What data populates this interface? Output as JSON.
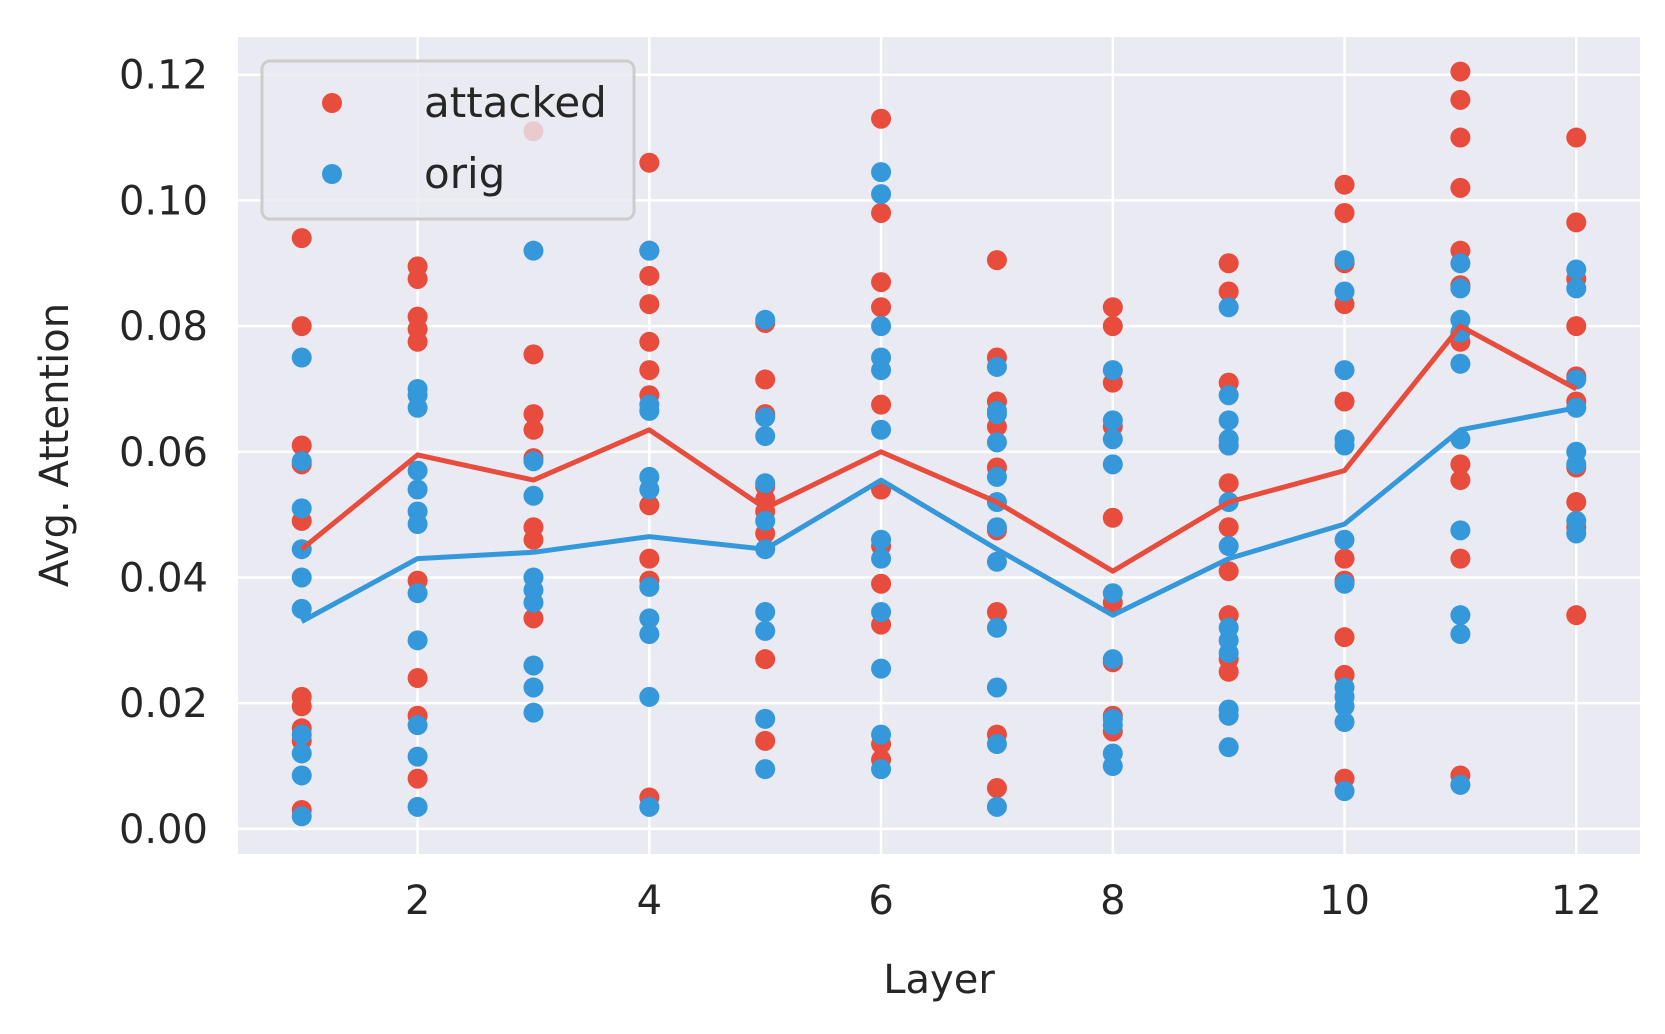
{
  "chart_data": {
    "type": "scatter",
    "title": "",
    "xlabel": "Layer",
    "ylabel": "Avg. Attention",
    "xlim": [
      0.45,
      12.55
    ],
    "ylim": [
      -0.004,
      0.126
    ],
    "xticks": [
      2,
      4,
      6,
      8,
      10,
      12
    ],
    "xtick_labels": [
      "2",
      "4",
      "6",
      "8",
      "10",
      "12"
    ],
    "yticks": [
      0.0,
      0.02,
      0.04,
      0.06,
      0.08,
      0.1,
      0.12
    ],
    "ytick_labels": [
      "0.00",
      "0.02",
      "0.04",
      "0.06",
      "0.08",
      "0.10",
      "0.12"
    ],
    "grid": true,
    "legend_position": "top-left",
    "colors": {
      "background": "#eaeaf2",
      "grid": "#ffffff",
      "attacked": "#e74c3c",
      "orig": "#3498db"
    },
    "series": [
      {
        "name": "attacked",
        "color": "#e74c3c",
        "points": {
          "1": [
            0.094,
            0.08,
            0.061,
            0.058,
            0.049,
            0.021,
            0.0195,
            0.016,
            0.014,
            0.003
          ],
          "2": [
            0.0895,
            0.0875,
            0.0815,
            0.0795,
            0.0775,
            0.0395,
            0.024,
            0.018,
            0.008
          ],
          "3": [
            0.111,
            0.0755,
            0.066,
            0.0635,
            0.059,
            0.048,
            0.046,
            0.0335
          ],
          "4": [
            0.106,
            0.092,
            0.088,
            0.0835,
            0.0775,
            0.073,
            0.069,
            0.0515,
            0.043,
            0.0395,
            0.005
          ],
          "5": [
            0.0805,
            0.0715,
            0.066,
            0.0545,
            0.0525,
            0.0505,
            0.047,
            0.027,
            0.014
          ],
          "6": [
            0.113,
            0.098,
            0.087,
            0.083,
            0.0675,
            0.054,
            0.045,
            0.039,
            0.0325,
            0.0135,
            0.011
          ],
          "7": [
            0.0905,
            0.075,
            0.068,
            0.064,
            0.0575,
            0.0475,
            0.0345,
            0.015,
            0.0065
          ],
          "8": [
            0.083,
            0.08,
            0.071,
            0.064,
            0.0495,
            0.036,
            0.0265,
            0.018,
            0.0155
          ],
          "9": [
            0.09,
            0.0855,
            0.071,
            0.061,
            0.055,
            0.048,
            0.041,
            0.034,
            0.027,
            0.025
          ],
          "10": [
            0.1025,
            0.098,
            0.09,
            0.0835,
            0.068,
            0.043,
            0.0395,
            0.0305,
            0.0245,
            0.008
          ],
          "11": [
            0.1205,
            0.116,
            0.11,
            0.102,
            0.092,
            0.0865,
            0.0775,
            0.058,
            0.0555,
            0.043,
            0.0085
          ],
          "12": [
            0.11,
            0.0965,
            0.0875,
            0.08,
            0.072,
            0.068,
            0.0575,
            0.052,
            0.048,
            0.034
          ]
        },
        "line": [
          0.0445,
          0.0595,
          0.0555,
          0.0635,
          0.051,
          0.06,
          0.052,
          0.041,
          0.052,
          0.057,
          0.08,
          0.07
        ]
      },
      {
        "name": "orig",
        "color": "#3498db",
        "points": {
          "1": [
            0.075,
            0.0585,
            0.051,
            0.0445,
            0.04,
            0.035,
            0.015,
            0.012,
            0.0085,
            0.002
          ],
          "2": [
            0.07,
            0.069,
            0.067,
            0.057,
            0.054,
            0.0505,
            0.0485,
            0.0375,
            0.03,
            0.0165,
            0.0115,
            0.0035
          ],
          "3": [
            0.092,
            0.0585,
            0.053,
            0.04,
            0.038,
            0.036,
            0.026,
            0.0225,
            0.0185
          ],
          "4": [
            0.092,
            0.0675,
            0.0665,
            0.056,
            0.054,
            0.0385,
            0.0335,
            0.031,
            0.021,
            0.0035
          ],
          "5": [
            0.081,
            0.0655,
            0.0625,
            0.055,
            0.049,
            0.0445,
            0.0345,
            0.0315,
            0.0175,
            0.0095
          ],
          "6": [
            0.1045,
            0.101,
            0.08,
            0.075,
            0.073,
            0.0635,
            0.046,
            0.043,
            0.0345,
            0.0255,
            0.015,
            0.0095
          ],
          "7": [
            0.0735,
            0.0665,
            0.066,
            0.0615,
            0.056,
            0.052,
            0.048,
            0.0425,
            0.032,
            0.0225,
            0.0135,
            0.0035
          ],
          "8": [
            0.073,
            0.065,
            0.062,
            0.058,
            0.0375,
            0.027,
            0.0175,
            0.0165,
            0.012,
            0.01
          ],
          "9": [
            0.083,
            0.069,
            0.065,
            0.062,
            0.061,
            0.052,
            0.045,
            0.032,
            0.03,
            0.028,
            0.019,
            0.018,
            0.013
          ],
          "10": [
            0.0905,
            0.0855,
            0.073,
            0.062,
            0.061,
            0.046,
            0.039,
            0.0225,
            0.021,
            0.0195,
            0.017,
            0.006
          ],
          "11": [
            0.09,
            0.086,
            0.081,
            0.079,
            0.074,
            0.062,
            0.0475,
            0.034,
            0.031,
            0.007
          ],
          "12": [
            0.089,
            0.086,
            0.0715,
            0.067,
            0.06,
            0.058,
            0.049,
            0.047
          ]
        },
        "line": [
          0.033,
          0.043,
          0.044,
          0.0465,
          0.0445,
          0.0555,
          0.0445,
          0.034,
          0.043,
          0.0485,
          0.0635,
          0.067
        ]
      }
    ]
  }
}
